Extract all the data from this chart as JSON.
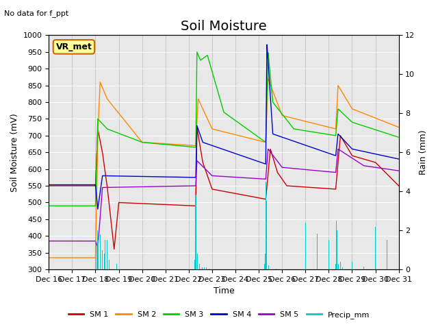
{
  "title": "Soil Moisture",
  "subtitle": "No data for f_ppt",
  "xlabel": "Time",
  "ylabel_left": "Soil Moisture (mV)",
  "ylabel_right": "Rain (mm)",
  "ylim_left": [
    300,
    1000
  ],
  "ylim_right": [
    0,
    12
  ],
  "yticks_left": [
    300,
    350,
    400,
    450,
    500,
    550,
    600,
    650,
    700,
    750,
    800,
    850,
    900,
    950,
    1000
  ],
  "xtick_labels": [
    "Dec 16",
    "Dec 17",
    "Dec 18",
    "Dec 19",
    "Dec 20",
    "Dec 21",
    "Dec 22",
    "Dec 23",
    "Dec 24",
    "Dec 25",
    "Dec 26",
    "Dec 27",
    "Dec 28",
    "Dec 29",
    "Dec 30",
    "Dec 31"
  ],
  "xtick_positions": [
    0,
    24,
    48,
    72,
    96,
    120,
    144,
    168,
    192,
    216,
    240,
    264,
    288,
    312,
    336,
    360
  ],
  "legend_labels": [
    "SM 1",
    "SM 2",
    "SM 3",
    "SM 4",
    "SM 5",
    "Precip_mm"
  ],
  "colors": {
    "SM1": "#cc0000",
    "SM2": "#ff8800",
    "SM3": "#00cc00",
    "SM4": "#0000cc",
    "SM5": "#9900cc",
    "Precip": "#00cccc"
  },
  "background_color": "#e8e8e8",
  "grid_color": "#ffffff",
  "title_fontsize": 14,
  "axis_fontsize": 9,
  "legend_fontsize": 9
}
